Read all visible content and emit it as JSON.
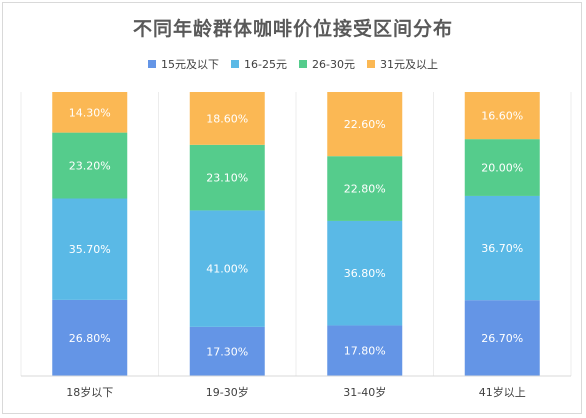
{
  "chart_data": {
    "type": "bar",
    "stacked": true,
    "title": "不同年龄群体咖啡价位接受区间分布",
    "categories": [
      "18岁以下",
      "19-30岁",
      "31-40岁",
      "41岁以上"
    ],
    "series": [
      {
        "name": "15元及以下",
        "color": "#6495e6",
        "values": [
          26.8,
          17.3,
          17.8,
          26.7
        ],
        "labels": [
          "26.80%",
          "17.30%",
          "17.80%",
          "26.70%"
        ]
      },
      {
        "name": "16-25元",
        "color": "#5ab9e6",
        "values": [
          35.7,
          41.0,
          36.8,
          36.7
        ],
        "labels": [
          "35.70%",
          "41.00%",
          "36.80%",
          "36.70%"
        ]
      },
      {
        "name": "26-30元",
        "color": "#55cc8c",
        "values": [
          23.2,
          23.1,
          22.8,
          20.0
        ],
        "labels": [
          "23.20%",
          "23.10%",
          "22.80%",
          "20.00%"
        ]
      },
      {
        "name": "31元及以上",
        "color": "#fbb854",
        "values": [
          14.3,
          18.6,
          22.6,
          16.6
        ],
        "labels": [
          "14.30%",
          "18.60%",
          "22.60%",
          "16.60%"
        ]
      }
    ],
    "ylim": [
      0,
      100
    ],
    "grid": false,
    "legend_position": "top"
  }
}
